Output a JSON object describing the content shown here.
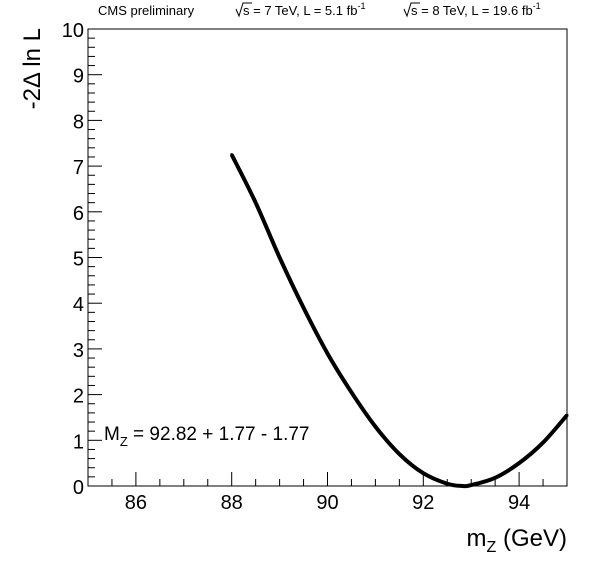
{
  "header": {
    "experiment": "CMS preliminary",
    "run1_prefix": "s",
    "run1_text": " = 7 TeV, L = 5.1 fb",
    "run1_sup": "-1",
    "run2_prefix": "s",
    "run2_text": " = 8 TeV, L = 19.6 fb",
    "run2_sup": "-1"
  },
  "chart_data": {
    "type": "line",
    "title": "",
    "xlabel": "m_Z (GeV)",
    "xlabel_main": "m",
    "xlabel_sub": "Z",
    "xlabel_rest": " (GeV)",
    "ylabel": "-2Δ ln L",
    "xlim": [
      85.0,
      95.0
    ],
    "ylim": [
      0,
      10
    ],
    "x_ticks": [
      86,
      88,
      90,
      92,
      94
    ],
    "y_ticks": [
      0,
      1,
      2,
      3,
      4,
      5,
      6,
      7,
      8,
      9,
      10
    ],
    "grid": false,
    "line_color": "#000000",
    "series": [
      {
        "x": [
          88.0,
          88.5,
          89.0,
          89.5,
          90.0,
          90.5,
          91.0,
          91.5,
          92.0,
          92.5,
          92.82,
          93.0,
          93.5,
          94.0,
          94.5,
          95.0
        ],
        "y": [
          7.25,
          6.2,
          5.0,
          3.9,
          2.9,
          2.05,
          1.3,
          0.7,
          0.28,
          0.05,
          0.0,
          0.02,
          0.18,
          0.5,
          0.95,
          1.55
        ]
      }
    ],
    "annotation": {
      "main": "M",
      "sub": "Z",
      "rest": " = 92.82 + 1.77 - 1.77"
    }
  }
}
